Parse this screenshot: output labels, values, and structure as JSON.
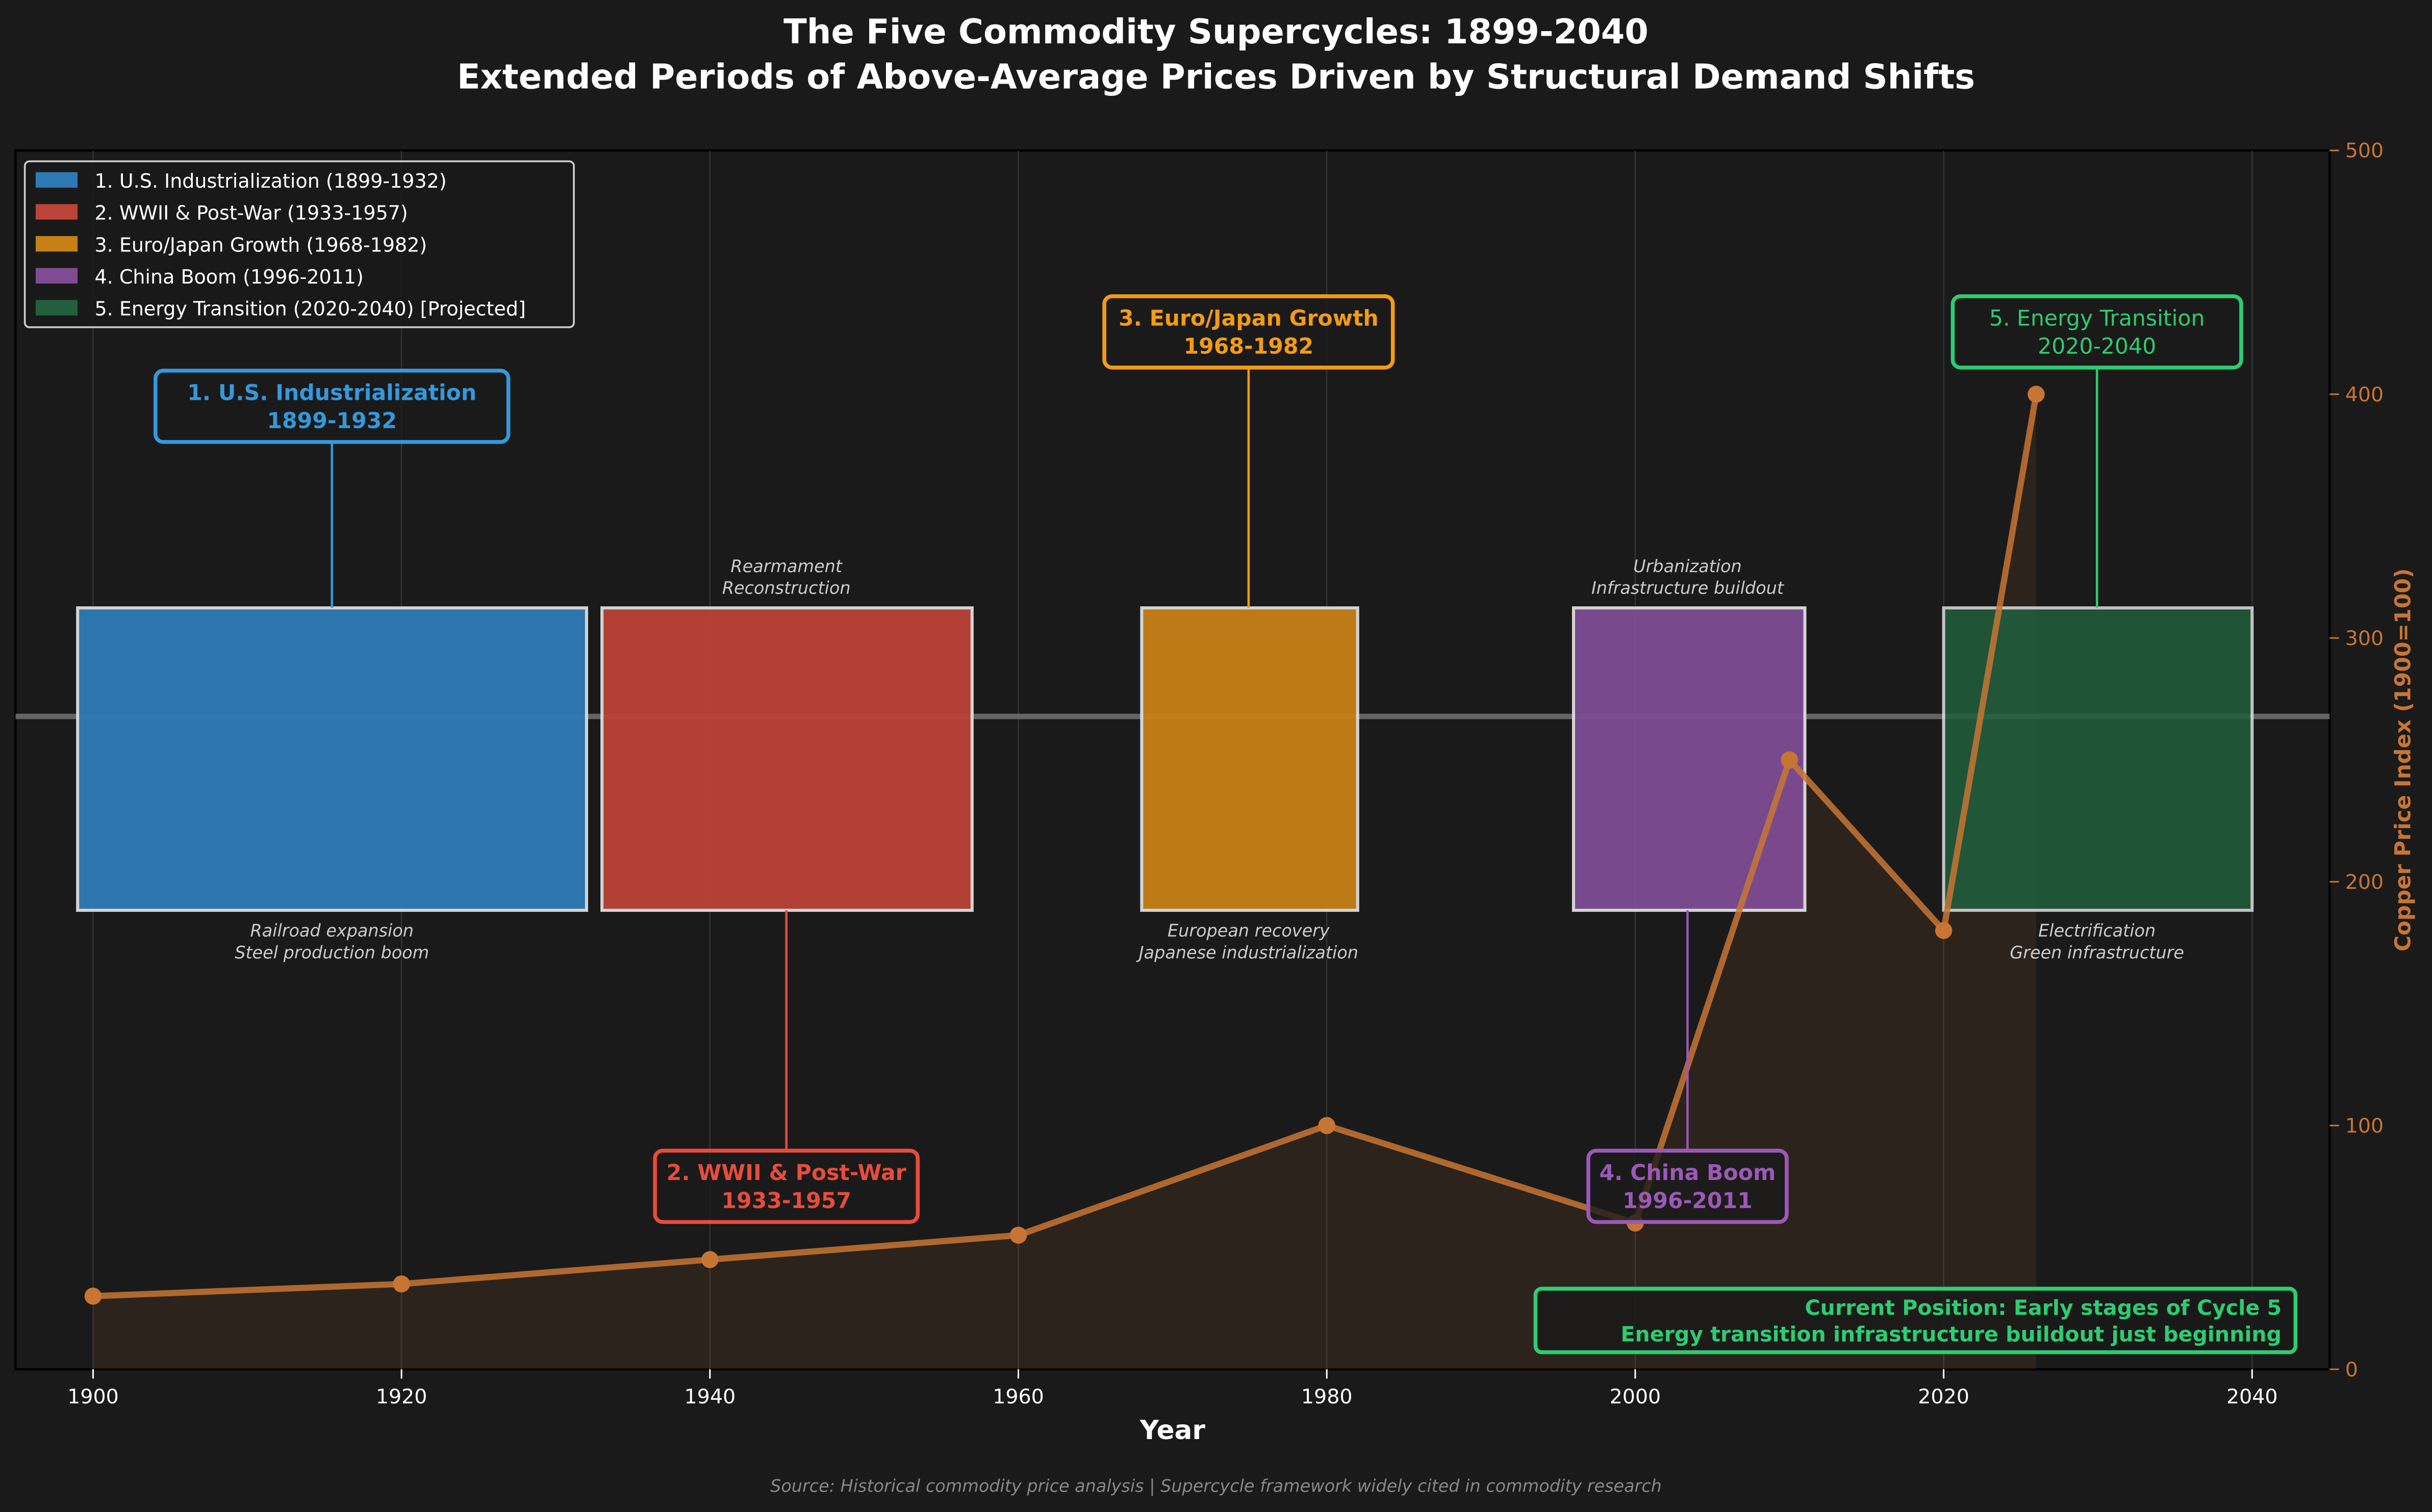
{
  "chart_data": {
    "type": "line",
    "title": "The Five Commodity Supercycles: 1899-2040",
    "subtitle": "Extended Periods of Above-Average Prices Driven by Structural Demand Shifts",
    "xlabel": "Year",
    "ylabel_right": "Copper Price Index (1900=100)",
    "xlim": [
      1895,
      2044
    ],
    "ylim_right": [
      0,
      500
    ],
    "x_ticks": [
      "1900",
      "1920",
      "1940",
      "1960",
      "1980",
      "2000",
      "2020",
      "2040"
    ],
    "y_ticks_right": [
      "0",
      "100",
      "200",
      "300",
      "400",
      "500"
    ],
    "grid": true,
    "legend_position": "top-left",
    "copper_series": {
      "color": "#c87533",
      "x": [
        1900,
        1920,
        1940,
        1960,
        1980,
        2000,
        2010,
        2020,
        2026
      ],
      "y": [
        30,
        35,
        45,
        55,
        100,
        60,
        250,
        180,
        400
      ]
    },
    "cycles": [
      {
        "legend": "1. U.S. Industrialization (1899-1932)",
        "name": "1. U.S. Industrialization",
        "period": "1899-1932",
        "start": 1899,
        "end": 1932,
        "color": "#3498db",
        "fill": "#2e7ab5",
        "label_pos": "top",
        "drivers": [
          "Railroad expansion",
          "Steel production boom"
        ],
        "drivers_pos": "below"
      },
      {
        "legend": "2. WWII & Post-War (1933-1957)",
        "name": "2. WWII & Post-War",
        "period": "1933-1957",
        "start": 1933,
        "end": 1957,
        "color": "#e74c3c",
        "fill": "#bb4337",
        "label_pos": "bottom",
        "drivers": [
          "Rearmament",
          "Reconstruction"
        ],
        "drivers_pos": "above"
      },
      {
        "legend": "3. Euro/Japan Growth (1968-1982)",
        "name": "3. Euro/Japan Growth",
        "period": "1968-1982",
        "start": 1968,
        "end": 1982,
        "color": "#f39c12",
        "fill": "#c68016",
        "label_pos": "top",
        "drivers": [
          "European recovery",
          "Japanese industrialization"
        ],
        "drivers_pos": "below"
      },
      {
        "legend": "4. China Boom (1996-2011)",
        "name": "4. China Boom",
        "period": "1996-2011",
        "start": 1996,
        "end": 2011,
        "color": "#9b59b6",
        "fill": "#7f4c94",
        "label_pos": "bottom",
        "drivers": [
          "Urbanization",
          "Infrastructure buildout"
        ],
        "drivers_pos": "above"
      },
      {
        "legend": "5. Energy Transition (2020-2040) [Projected]",
        "name": "5. Energy Transition",
        "period": "2020-2040",
        "start": 2020,
        "end": 2040,
        "color": "#2ecc71",
        "fill": "#215f3d",
        "label_pos": "top",
        "drivers": [
          "Electrification",
          "Green infrastructure"
        ],
        "drivers_pos": "below"
      }
    ],
    "annotation": {
      "line1": "Current Position: Early stages of Cycle 5",
      "line2": "Energy transition infrastructure buildout just beginning",
      "color": "#2ecc71"
    },
    "source": "Source: Historical commodity price analysis | Supercycle framework widely cited in commodity research"
  }
}
